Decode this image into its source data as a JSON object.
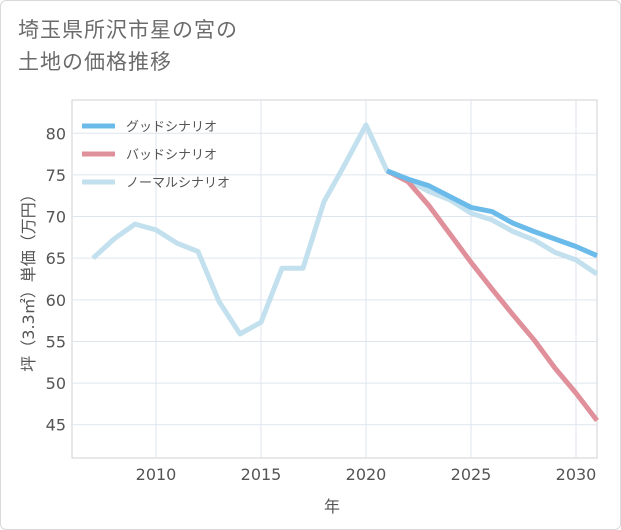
{
  "title": {
    "line1": "埼玉県所沢市星の宮の",
    "line2": "土地の価格推移"
  },
  "chart_data": {
    "type": "line",
    "xlabel": "年",
    "ylabel": "坪（3.3㎡）単価（万円）",
    "xlim": [
      2006,
      2031
    ],
    "ylim": [
      41,
      84
    ],
    "xticks": [
      2010,
      2015,
      2020,
      2025,
      2030
    ],
    "yticks": [
      45,
      50,
      55,
      60,
      65,
      70,
      75,
      80
    ],
    "grid": true,
    "legend_position": "top-left",
    "series": [
      {
        "name": "ノーマルシナリオ",
        "color": "#c2e0ee",
        "x": [
          2007,
          2008,
          2009,
          2010,
          2011,
          2012,
          2013,
          2014,
          2015,
          2016,
          2017,
          2018,
          2019,
          2020,
          2021,
          2022,
          2023,
          2024,
          2025,
          2026,
          2027,
          2028,
          2029,
          2030,
          2031
        ],
        "values": [
          65.0,
          67.3,
          69.1,
          68.4,
          66.8,
          65.8,
          59.8,
          55.9,
          57.3,
          63.8,
          63.8,
          71.8,
          76.3,
          81.0,
          75.5,
          74.4,
          73.0,
          72.0,
          70.4,
          69.6,
          68.2,
          67.2,
          65.7,
          64.8,
          63.1
        ]
      },
      {
        "name": "バッドシナリオ",
        "color": "#e0909a",
        "x": [
          2021,
          2022,
          2023,
          2024,
          2025,
          2026,
          2027,
          2028,
          2029,
          2030,
          2031
        ],
        "values": [
          75.5,
          74.2,
          71.3,
          67.9,
          64.5,
          61.3,
          58.2,
          55.2,
          51.8,
          48.8,
          45.5
        ]
      },
      {
        "name": "グッドシナリオ",
        "color": "#6bbbea",
        "x": [
          2021,
          2022,
          2023,
          2024,
          2025,
          2026,
          2027,
          2028,
          2029,
          2030,
          2031
        ],
        "values": [
          75.5,
          74.5,
          73.7,
          72.4,
          71.1,
          70.6,
          69.2,
          68.2,
          67.3,
          66.4,
          65.3
        ]
      }
    ],
    "legend": [
      {
        "label": "グッドシナリオ",
        "color": "#6bbbea"
      },
      {
        "label": "バッドシナリオ",
        "color": "#e0909a"
      },
      {
        "label": "ノーマルシナリオ",
        "color": "#c2e0ee"
      }
    ]
  }
}
